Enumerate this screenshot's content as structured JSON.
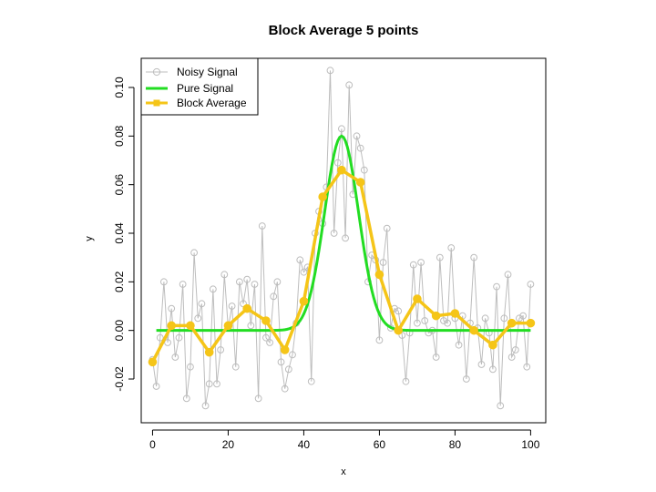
{
  "chart_data": {
    "type": "line",
    "title": "Block Average 5 points",
    "xlabel": "x",
    "ylabel": "y",
    "xlim": [
      -3,
      104
    ],
    "ylim": [
      -0.038,
      0.112
    ],
    "x_ticks": [
      0,
      20,
      40,
      60,
      80,
      100
    ],
    "x_tick_labels": [
      "0",
      "20",
      "40",
      "60",
      "80",
      "100"
    ],
    "y_ticks": [
      -0.02,
      0.0,
      0.02,
      0.04,
      0.06,
      0.08,
      0.1
    ],
    "y_tick_labels": [
      "-0.02",
      "0.00",
      "0.02",
      "0.04",
      "0.06",
      "0.08",
      "0.10"
    ],
    "grid": false,
    "legend_position": "top-left",
    "colors": {
      "noisy": "#bdbdbd",
      "pure": "#22dd22",
      "block": "#f5c518"
    },
    "series": [
      {
        "name": "Noisy Signal",
        "style": "line-open-circles",
        "x": [
          0,
          1,
          2,
          3,
          4,
          5,
          6,
          7,
          8,
          9,
          10,
          11,
          12,
          13,
          14,
          15,
          16,
          17,
          18,
          19,
          20,
          21,
          22,
          23,
          24,
          25,
          26,
          27,
          28,
          29,
          30,
          31,
          32,
          33,
          34,
          35,
          36,
          37,
          38,
          39,
          40,
          41,
          42,
          43,
          44,
          45,
          46,
          47,
          48,
          49,
          50,
          51,
          52,
          53,
          54,
          55,
          56,
          57,
          58,
          59,
          60,
          61,
          62,
          63,
          64,
          65,
          66,
          67,
          68,
          69,
          70,
          71,
          72,
          73,
          74,
          75,
          76,
          77,
          78,
          79,
          80,
          81,
          82,
          83,
          84,
          85,
          86,
          87,
          88,
          89,
          90,
          91,
          92,
          93,
          94,
          95,
          96,
          97,
          98,
          99,
          100
        ],
        "y": [
          -0.012,
          -0.023,
          -0.003,
          0.02,
          -0.005,
          0.009,
          -0.011,
          -0.003,
          0.019,
          -0.028,
          -0.015,
          0.032,
          0.005,
          0.011,
          -0.031,
          -0.022,
          0.017,
          -0.022,
          -0.008,
          0.023,
          0.001,
          0.01,
          -0.015,
          0.02,
          0.011,
          0.021,
          0.002,
          0.019,
          -0.028,
          0.043,
          -0.003,
          -0.005,
          0.014,
          0.02,
          -0.013,
          -0.024,
          -0.016,
          -0.01,
          0.003,
          0.029,
          0.024,
          0.026,
          -0.021,
          0.04,
          0.049,
          0.044,
          0.059,
          0.107,
          0.04,
          0.069,
          0.083,
          0.038,
          0.101,
          0.056,
          0.08,
          0.075,
          0.066,
          0.02,
          0.031,
          0.029,
          -0.004,
          0.028,
          0.042,
          0.001,
          0.009,
          0.008,
          -0.002,
          -0.021,
          -0.001,
          0.027,
          0.003,
          0.028,
          0.004,
          -0.001,
          0.0,
          -0.011,
          0.03,
          0.004,
          0.003,
          0.034,
          0.005,
          -0.006,
          0.006,
          -0.02,
          0.003,
          0.03,
          0.001,
          -0.014,
          0.005,
          -0.001,
          -0.016,
          0.018,
          -0.031,
          0.005,
          0.023,
          -0.011,
          -0.008,
          0.005,
          0.006,
          -0.015,
          0.019
        ]
      },
      {
        "name": "Pure Signal",
        "style": "line",
        "gaussian": {
          "amplitude": 0.08,
          "center": 50,
          "sigma": 4.5
        },
        "x_range": [
          1,
          100
        ]
      },
      {
        "name": "Block Average",
        "style": "line-filled-squares",
        "x": [
          0,
          5,
          10,
          15,
          20,
          25,
          30,
          35,
          40,
          45,
          50,
          55,
          60,
          65,
          70,
          75,
          80,
          85,
          90,
          95,
          100
        ],
        "y": [
          -0.013,
          0.002,
          0.002,
          -0.009,
          0.002,
          0.009,
          0.004,
          -0.008,
          0.012,
          0.055,
          0.066,
          0.061,
          0.023,
          0.0,
          0.013,
          0.006,
          0.007,
          0.0,
          -0.006,
          0.003,
          0.003
        ]
      }
    ]
  }
}
